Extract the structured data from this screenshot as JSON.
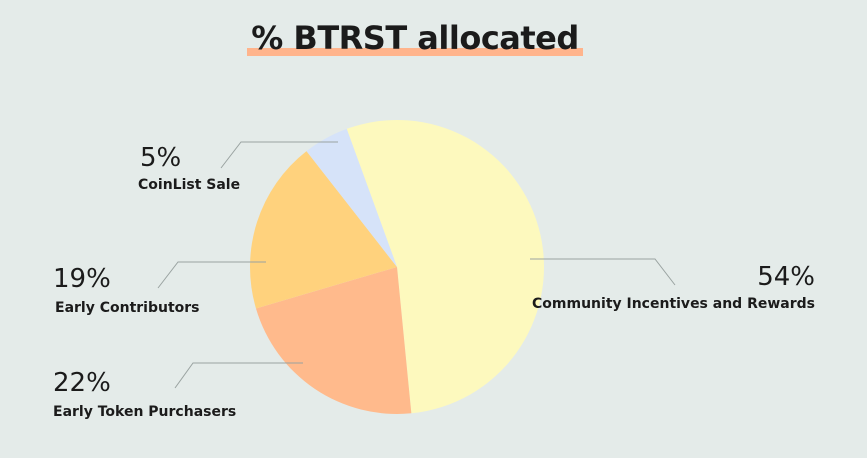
{
  "chart_data": {
    "type": "pie",
    "title": "% BTRST allocated",
    "slices": [
      {
        "label": "Community Incentives and Rewards",
        "value": 54,
        "value_label": "54%",
        "color": "#fdf9be"
      },
      {
        "label": "Early Token Purchasers",
        "value": 22,
        "value_label": "22%",
        "color": "#ffba8c"
      },
      {
        "label": "Early Contributors",
        "value": 19,
        "value_label": "19%",
        "color": "#ffd27d"
      },
      {
        "label": "CoinList Sale",
        "value": 5,
        "value_label": "5%",
        "color": "#d6e3f9"
      }
    ],
    "title_underline_color": "#ffb48c",
    "background_color": "#e4ebe9"
  }
}
